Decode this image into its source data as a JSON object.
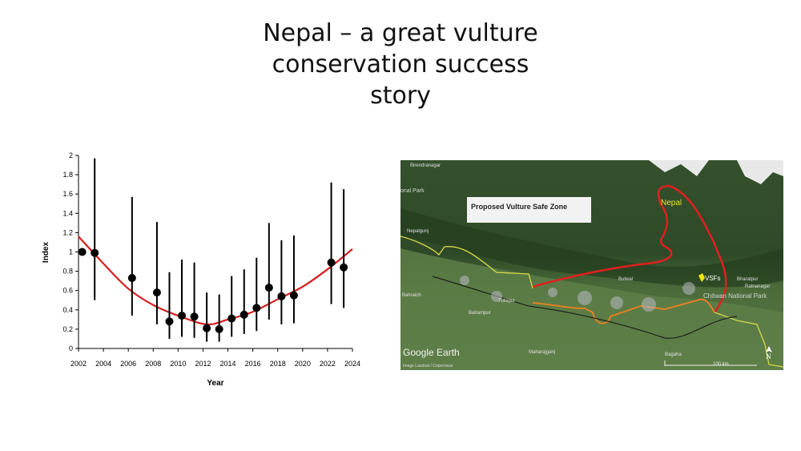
{
  "slide": {
    "title_lines": [
      "Nepal – a great vulture",
      "conservation success",
      "story"
    ]
  },
  "chart_data": {
    "type": "scatter",
    "xlabel": "Year",
    "ylabel": "Index",
    "xlim": [
      2002,
      2024
    ],
    "ylim": [
      0,
      2
    ],
    "xticks": [
      2002,
      2004,
      2006,
      2008,
      2010,
      2012,
      2014,
      2016,
      2018,
      2020,
      2022,
      2024
    ],
    "yticks": [
      0,
      0.2,
      0.4,
      0.6,
      0.8,
      1,
      1.2,
      1.4,
      1.6,
      1.8,
      2
    ],
    "ytick_labels": [
      "0",
      "0.2",
      "0.4",
      "0.6",
      "0.8",
      "1",
      "1.2",
      "1.4",
      "1.6",
      "1.8",
      "2"
    ],
    "grid": false,
    "points": [
      {
        "x": 2002.3,
        "y": 1.0,
        "low": null,
        "high": null
      },
      {
        "x": 2003.3,
        "y": 0.99,
        "low": 0.5,
        "high": 1.97
      },
      {
        "x": 2006.3,
        "y": 0.73,
        "low": 0.34,
        "high": 1.57
      },
      {
        "x": 2008.3,
        "y": 0.58,
        "low": 0.25,
        "high": 1.31
      },
      {
        "x": 2009.3,
        "y": 0.28,
        "low": 0.1,
        "high": 0.79
      },
      {
        "x": 2010.3,
        "y": 0.34,
        "low": 0.12,
        "high": 0.92
      },
      {
        "x": 2011.3,
        "y": 0.33,
        "low": 0.11,
        "high": 0.89
      },
      {
        "x": 2012.3,
        "y": 0.21,
        "low": 0.07,
        "high": 0.58
      },
      {
        "x": 2013.3,
        "y": 0.2,
        "low": 0.07,
        "high": 0.56
      },
      {
        "x": 2014.3,
        "y": 0.31,
        "low": 0.12,
        "high": 0.75
      },
      {
        "x": 2015.3,
        "y": 0.35,
        "low": 0.15,
        "high": 0.82
      },
      {
        "x": 2016.3,
        "y": 0.42,
        "low": 0.18,
        "high": 0.94
      },
      {
        "x": 2017.3,
        "y": 0.63,
        "low": 0.3,
        "high": 1.3
      },
      {
        "x": 2018.3,
        "y": 0.54,
        "low": 0.25,
        "high": 1.12
      },
      {
        "x": 2019.3,
        "y": 0.55,
        "low": 0.26,
        "high": 1.17
      },
      {
        "x": 2022.3,
        "y": 0.89,
        "low": 0.46,
        "high": 1.72
      },
      {
        "x": 2023.3,
        "y": 0.84,
        "low": 0.42,
        "high": 1.65
      }
    ],
    "trend": {
      "color": "#d42020",
      "x": [
        2002,
        2004,
        2006,
        2008,
        2010,
        2012.3,
        2014,
        2016,
        2018,
        2020,
        2022,
        2024
      ],
      "y": [
        1.16,
        0.88,
        0.62,
        0.45,
        0.34,
        0.25,
        0.3,
        0.38,
        0.51,
        0.64,
        0.82,
        1.03
      ]
    },
    "point_color": "#000000"
  },
  "map": {
    "label_box": "Proposed Vulture Safe Zone",
    "country_label": "Nepal",
    "vsf_label": "VSFs",
    "park_label": "Chitwan National Park",
    "park_label_left": "onal Park",
    "places": [
      "Birendranagar",
      "Nepalgunj",
      "Bahraich",
      "Tulsipur",
      "Balrampur",
      "Butwal",
      "Bharatpur",
      "Ratnanagar",
      "Maharajganj",
      "Bagaha"
    ],
    "brand": "Google Earth",
    "credit": "Image Landsat / Copernicus",
    "scale_label": "100 km",
    "north_label": "N",
    "colors": {
      "zone": "#e02020",
      "border": "#d8d84a",
      "orange": "#f08020",
      "vsf": "#f5e600"
    }
  }
}
